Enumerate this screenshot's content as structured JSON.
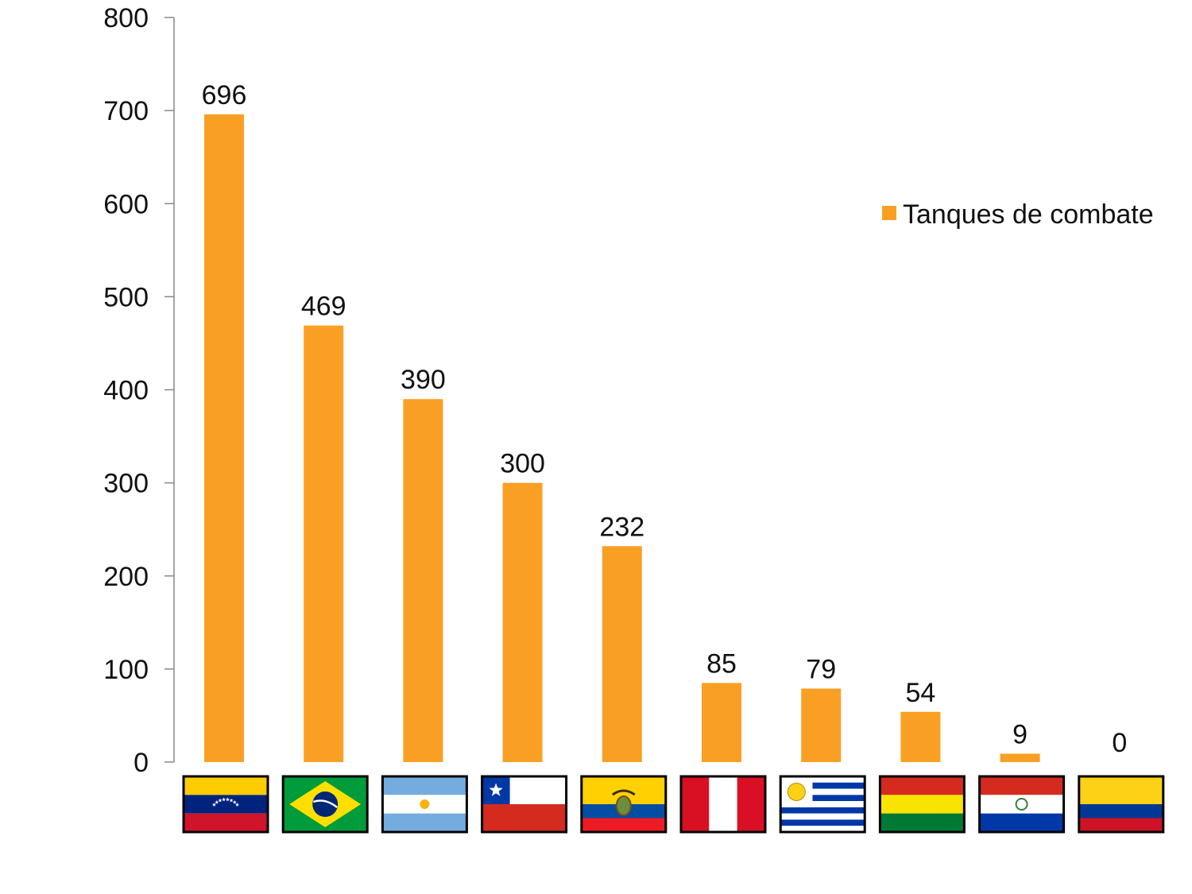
{
  "chart_data": {
    "type": "bar",
    "title": "",
    "xlabel": "",
    "ylabel": "",
    "ylim": [
      0,
      800
    ],
    "y_ticks": [
      "0",
      "100",
      "200",
      "300",
      "400",
      "500",
      "600",
      "700",
      "800"
    ],
    "grid": false,
    "legend": {
      "position": "right",
      "entries": [
        "Tanques de combate"
      ]
    },
    "categories": [
      "Venezuela",
      "Brasil",
      "Argentina",
      "Chile",
      "Ecuador",
      "Perú",
      "Uruguay",
      "Bolivia",
      "Paraguay",
      "Colombia"
    ],
    "category_display": "flag-icons",
    "series": [
      {
        "name": "Tanques de combate",
        "values": [
          696,
          469,
          390,
          300,
          232,
          85,
          79,
          54,
          9,
          0
        ],
        "color": "#F9A024"
      }
    ],
    "data_labels": [
      "696",
      "469",
      "390",
      "300",
      "232",
      "85",
      "79",
      "54",
      "9",
      "0"
    ]
  },
  "flags": [
    {
      "icon": "venezuela-flag-icon",
      "colors": [
        "#FFCC00",
        "#00247D",
        "#CF142B"
      ]
    },
    {
      "icon": "brazil-flag-icon",
      "colors": [
        "#009B3A",
        "#FEDF00",
        "#002776"
      ]
    },
    {
      "icon": "argentina-flag-icon",
      "colors": [
        "#74ACDF",
        "#FFFFFF",
        "#F6B40E"
      ]
    },
    {
      "icon": "chile-flag-icon",
      "colors": [
        "#0039A6",
        "#FFFFFF",
        "#D52B1E"
      ]
    },
    {
      "icon": "ecuador-flag-icon",
      "colors": [
        "#FFD100",
        "#034EA2",
        "#ED1C24"
      ]
    },
    {
      "icon": "peru-flag-icon",
      "colors": [
        "#D91023",
        "#FFFFFF"
      ]
    },
    {
      "icon": "uruguay-flag-icon",
      "colors": [
        "#FFFFFF",
        "#0038A8",
        "#FCD116"
      ]
    },
    {
      "icon": "bolivia-flag-icon",
      "colors": [
        "#D52B1E",
        "#F9E300",
        "#007934"
      ]
    },
    {
      "icon": "paraguay-flag-icon",
      "colors": [
        "#D52B1E",
        "#FFFFFF",
        "#0038A8"
      ]
    },
    {
      "icon": "colombia-flag-icon",
      "colors": [
        "#FCD116",
        "#003893",
        "#CE1126"
      ]
    }
  ]
}
